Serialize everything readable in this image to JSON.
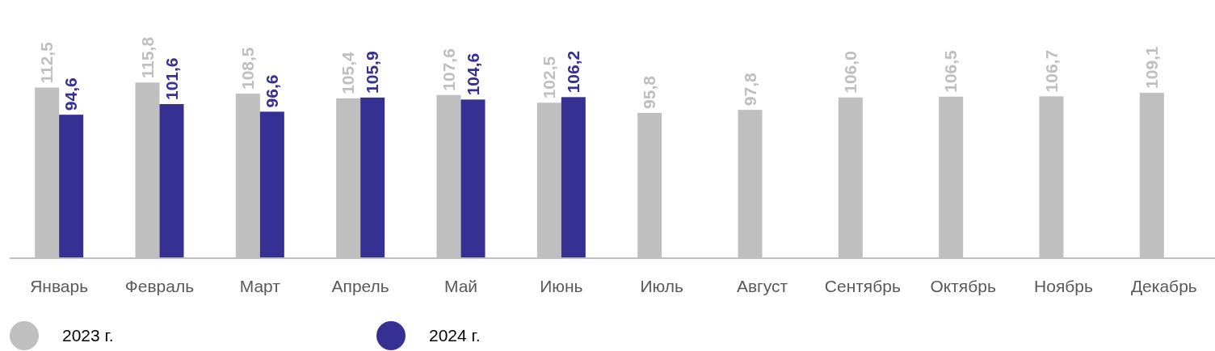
{
  "chart_data": {
    "type": "bar",
    "categories": [
      "Январь",
      "Февраль",
      "Март",
      "Апрель",
      "Май",
      "Июнь",
      "Июль",
      "Август",
      "Сентябрь",
      "Октябрь",
      "Ноябрь",
      "Декабрь"
    ],
    "series": [
      {
        "name": "2023 г.",
        "color": "#bfbfbf",
        "values": [
          112.5,
          115.8,
          108.5,
          105.4,
          107.6,
          102.5,
          95.8,
          97.8,
          106.0,
          106.5,
          106.7,
          109.1
        ],
        "value_labels": [
          "112,5",
          "115,8",
          "108,5",
          "105,4",
          "107,6",
          "102,5",
          "95,8",
          "97,8",
          "106,0",
          "106,5",
          "106,7",
          "109,1"
        ]
      },
      {
        "name": "2024 г.",
        "color": "#363092",
        "values": [
          94.6,
          101.6,
          96.6,
          105.9,
          104.6,
          106.2,
          null,
          null,
          null,
          null,
          null,
          null
        ],
        "value_labels": [
          "94,6",
          "101,6",
          "96,6",
          "105,9",
          "104,6",
          "106,2",
          null,
          null,
          null,
          null,
          null,
          null
        ]
      }
    ],
    "legend": "bottom",
    "tick_labels": "x"
  }
}
